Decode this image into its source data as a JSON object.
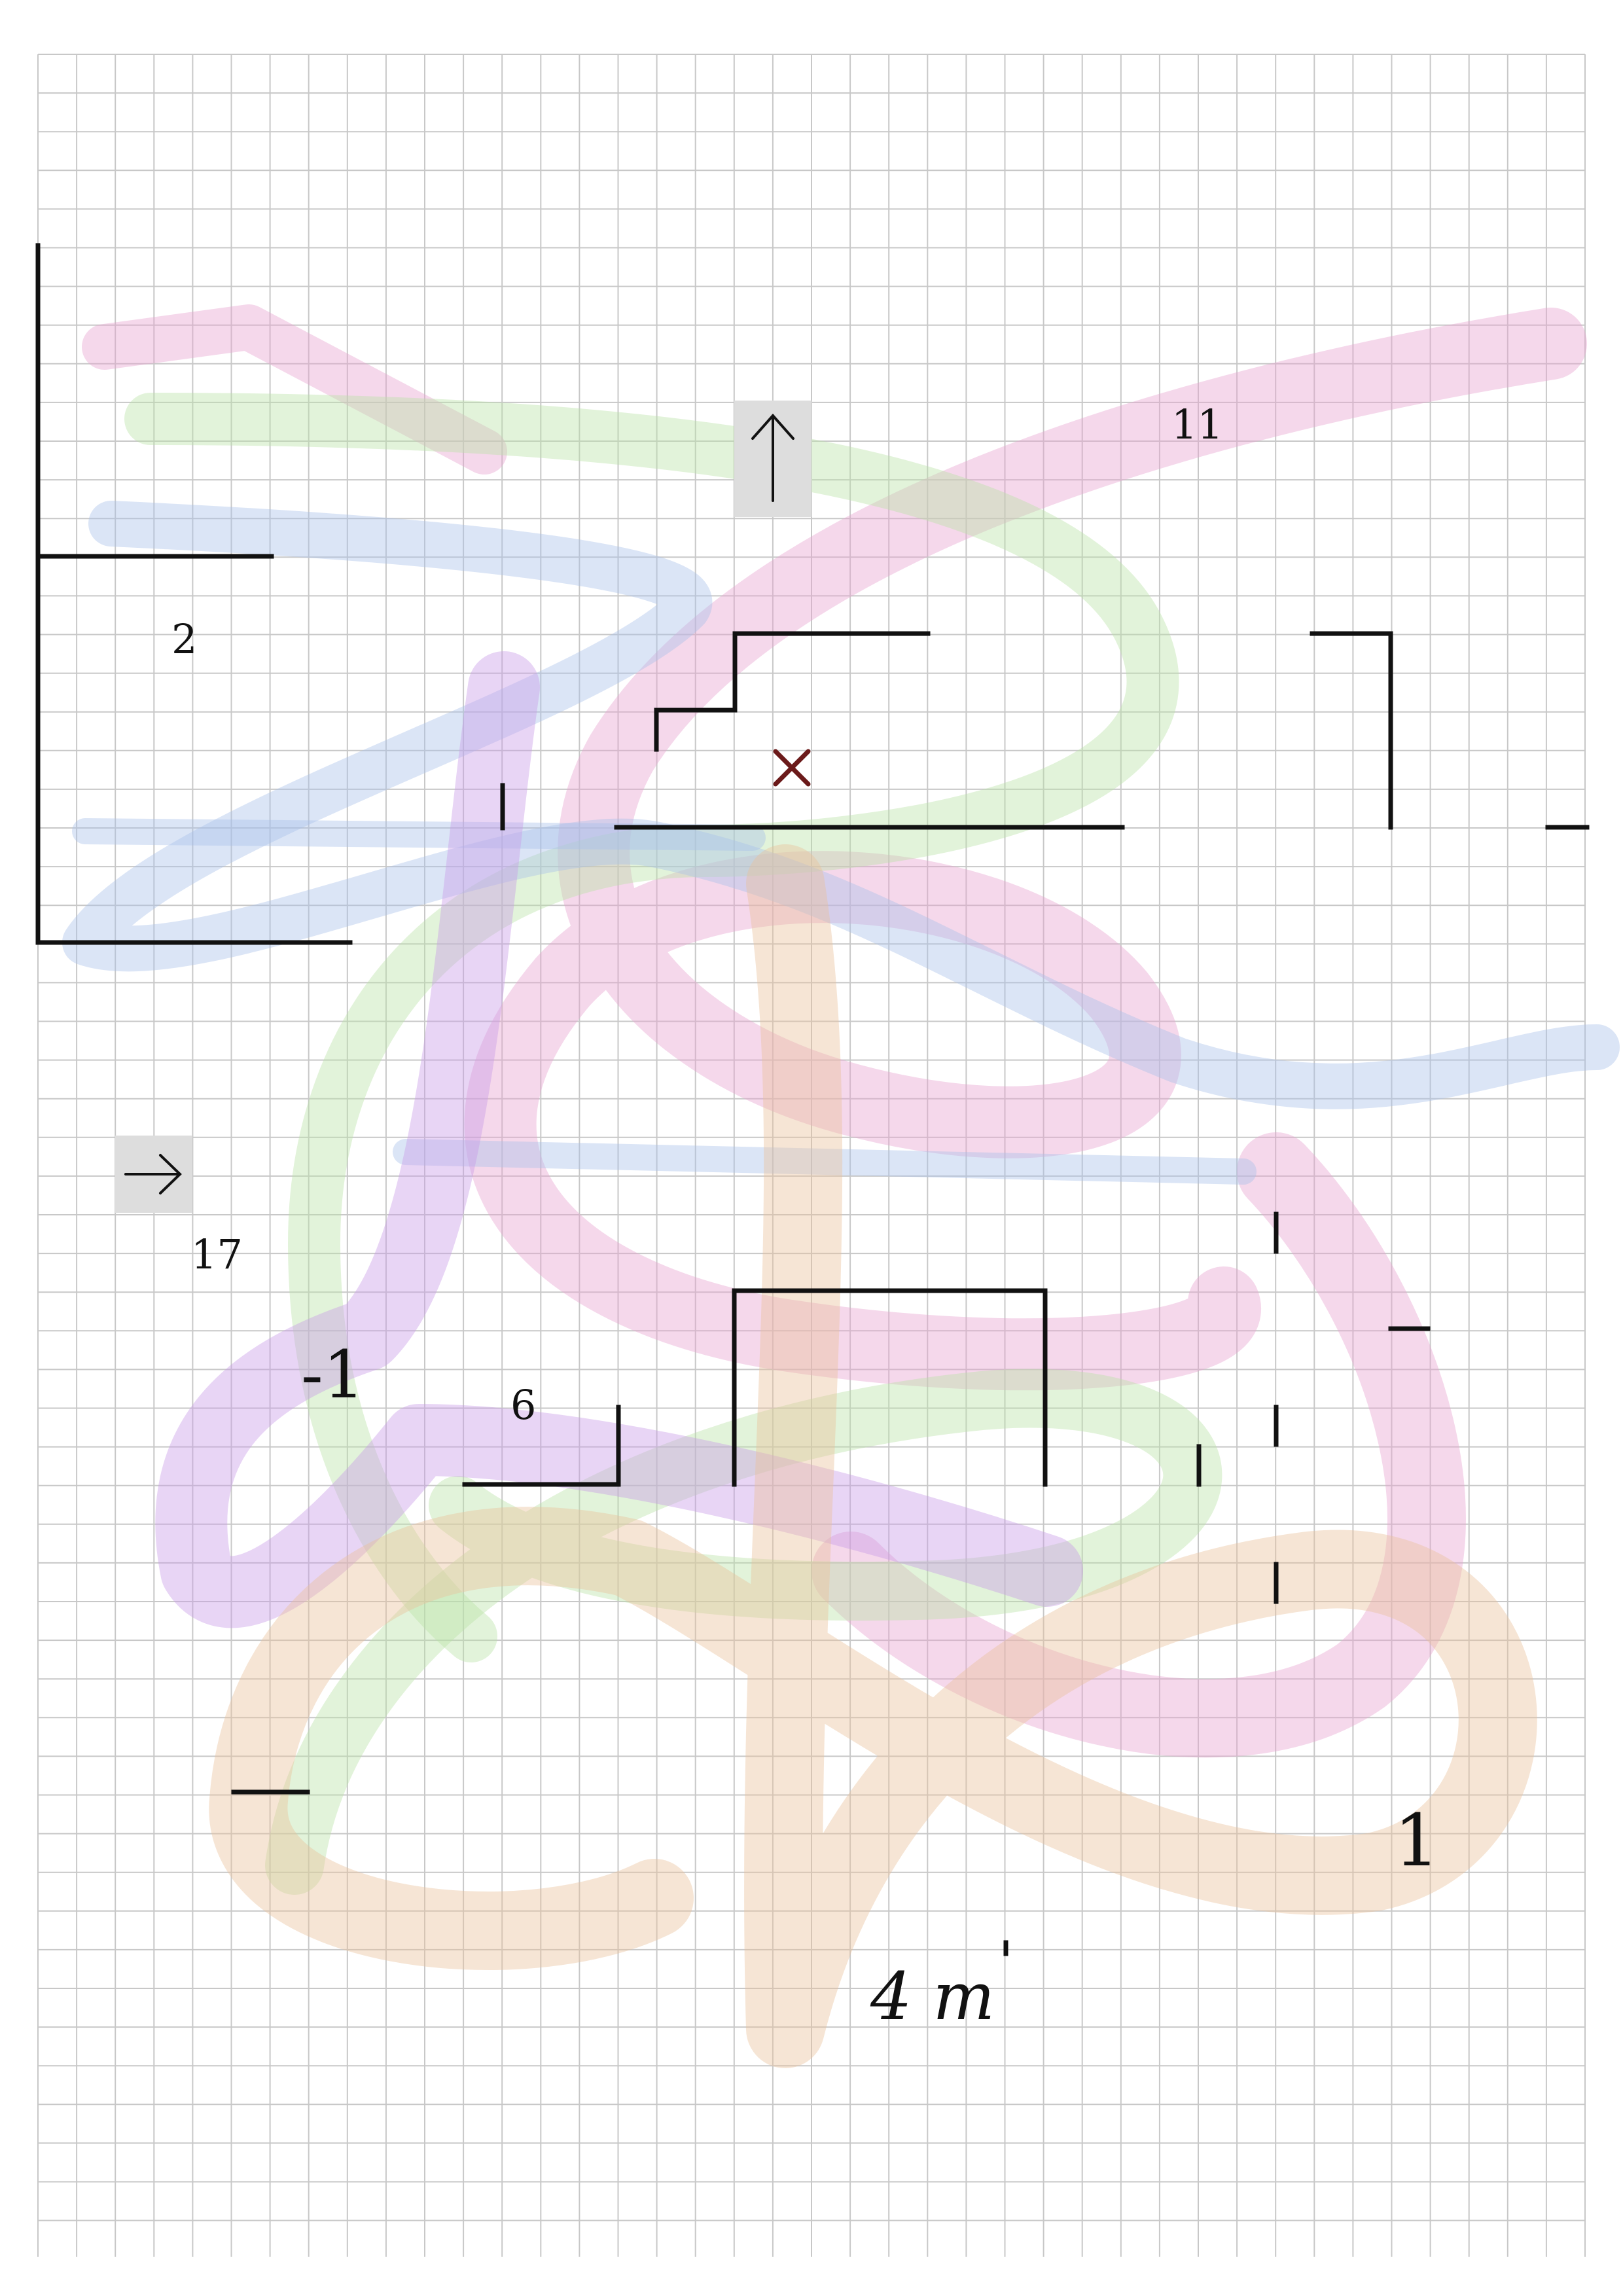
{
  "grid": {
    "line_color": "#c8c8c8",
    "background": "#ffffff"
  },
  "ribbon_colors": {
    "pink": "#e6a3cf",
    "green": "#b9e3a6",
    "blue": "#a9c2ea",
    "violet": "#c79be6",
    "tan": "#e9c29c"
  },
  "stroke_color": "#111111",
  "marker_color": "#6b1a1a",
  "labels": {
    "two": "2",
    "eleven": "11",
    "seventeen": "17",
    "six": "6",
    "neg_one": "-1",
    "one": "1",
    "handwriting": "4 m"
  },
  "icons": {
    "up_arrow": "arrow-up",
    "right_arrow": "arrow-right",
    "cross": "x-mark"
  },
  "icon_tile_color": "#dddddd"
}
